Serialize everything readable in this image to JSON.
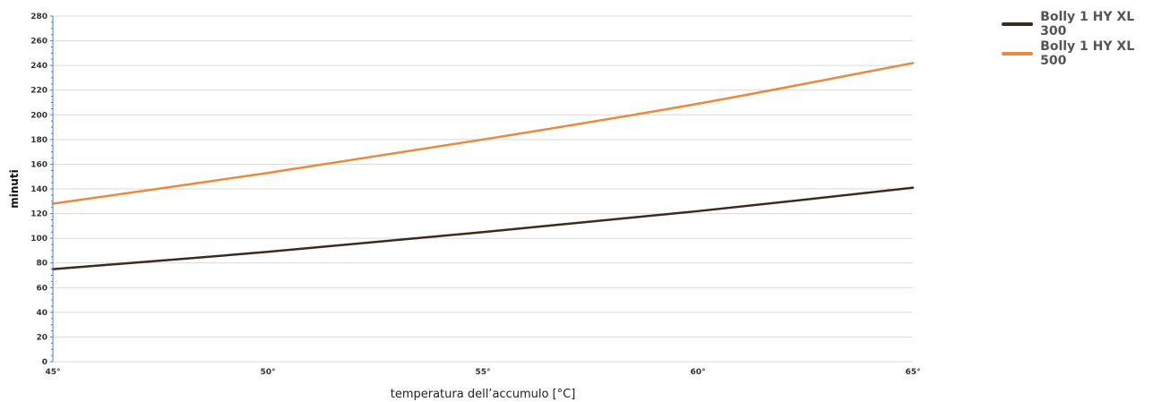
{
  "chart_data": {
    "type": "line",
    "xlabel": "temperatura dell’accumulo [°C]",
    "ylabel": "minuti",
    "x": [
      45,
      50,
      55,
      60,
      65
    ],
    "x_tick_labels": [
      "45°",
      "50°",
      "55°",
      "60°",
      "65°"
    ],
    "xlim": [
      45,
      65
    ],
    "ylim": [
      0,
      280
    ],
    "y_ticks": [
      0,
      20,
      40,
      60,
      80,
      100,
      120,
      140,
      160,
      180,
      200,
      220,
      240,
      260,
      280
    ],
    "grid": true,
    "legend_position": "top-right",
    "series": [
      {
        "name": "Bolly 1 HY XL 300",
        "color": "#3d2a1f",
        "values": [
          75,
          89,
          105,
          122,
          141
        ]
      },
      {
        "name": "Bolly 1 HY XL 500",
        "color": "#ea8a3e",
        "values": [
          128,
          153,
          180,
          209,
          242
        ]
      }
    ]
  }
}
